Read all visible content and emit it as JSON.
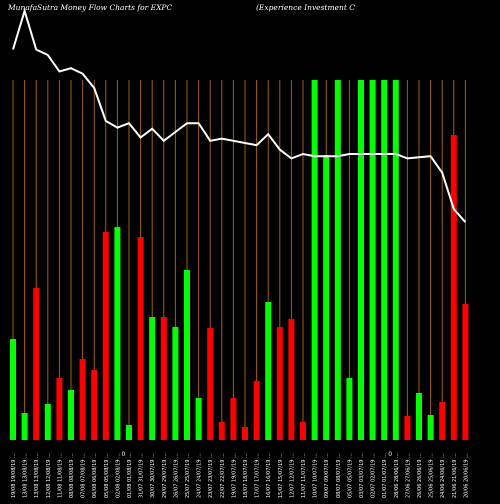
{
  "header": {
    "title": "MunafaSutra  Money Flow  Charts for EXPC",
    "company": "(Experience   Investment C"
  },
  "colors": {
    "background": "#000000",
    "up": "#00ff00",
    "down": "#ff0000",
    "grid": "#a0600a",
    "line": "#ffffff"
  },
  "chart_data": {
    "type": "bar",
    "title": "MunafaSutra  Money Flow  Charts for EXPC",
    "subtitle": "(Experience   Investment C",
    "grid": true,
    "categories": [
      "19/08 19/08/19 …",
      "13/08 13/08/19 …",
      "13/08 13/08/19 …",
      "12/08 12/08/19 …",
      "11/08 11/08/19 …",
      "08/08 08/08/19 …",
      "07/08 07/08/19 …",
      "06/08 06/08/19 …",
      "05/08 05/08/19 …",
      "02/08 02/08/19 …",
      "01/08 01/08/19 …",
      "31/07 31/07/19 …",
      "30/07 30/07/19 …",
      "29/07 29/07/19 …",
      "26/07 26/07/19 …",
      "25/07 25/07/19 …",
      "24/07 24/07/19 …",
      "23/07 23/07/19 …",
      "22/07 22/07/19 …",
      "19/07 19/07/19 …",
      "18/07 18/07/19 …",
      "17/07 17/07/19 …",
      "16/07 16/07/19 …",
      "15/07 15/07/19 …",
      "12/07 12/07/19 …",
      "11/07 11/07/19 …",
      "10/07 10/07/19 …",
      "09/07 09/07/19 …",
      "08/07 08/07/19 …",
      "05/07 05/07/19 …",
      "03/07 03/07/19 …",
      "02/07 02/07/19 …",
      "01/07 01/07/19 …",
      "28/06 28/06/19 …",
      "27/06 27/06/19 …",
      "26/06 26/06/19 …",
      "25/06 25/06/19 …",
      "24/06 24/06/19 …",
      "21/06 21/06/19 …",
      "20/06 20/06/19 …"
    ],
    "bar_values": [
      101,
      27,
      152,
      36,
      62,
      50,
      81,
      70,
      208,
      213,
      15,
      203,
      123,
      123,
      113,
      170,
      42,
      112,
      18,
      42,
      13,
      59,
      138,
      113,
      121,
      18,
      360,
      285,
      360,
      62,
      360,
      360,
      360,
      360,
      24,
      47,
      25,
      38,
      305,
      136
    ],
    "bar_colors": [
      "green",
      "green",
      "red",
      "green",
      "red",
      "green",
      "red",
      "red",
      "red",
      "green",
      "green",
      "red",
      "green",
      "red",
      "green",
      "green",
      "green",
      "red",
      "red",
      "red",
      "red",
      "red",
      "green",
      "red",
      "red",
      "red",
      "green",
      "green",
      "green",
      "green",
      "green",
      "green",
      "green",
      "green",
      "red",
      "green",
      "green",
      "red",
      "red",
      "red"
    ],
    "line_values": [
      355,
      390,
      355,
      350,
      335,
      338,
      333,
      320,
      290,
      284,
      288,
      275,
      283,
      272,
      280,
      288,
      288,
      272,
      274,
      272,
      270,
      268,
      278,
      264,
      256,
      260,
      258,
      258,
      258,
      260,
      260,
      260,
      260,
      260,
      256,
      257,
      258,
      243,
      210,
      198
    ],
    "mid_markers": [
      "0",
      "0"
    ],
    "ylim": [
      0,
      360
    ]
  }
}
